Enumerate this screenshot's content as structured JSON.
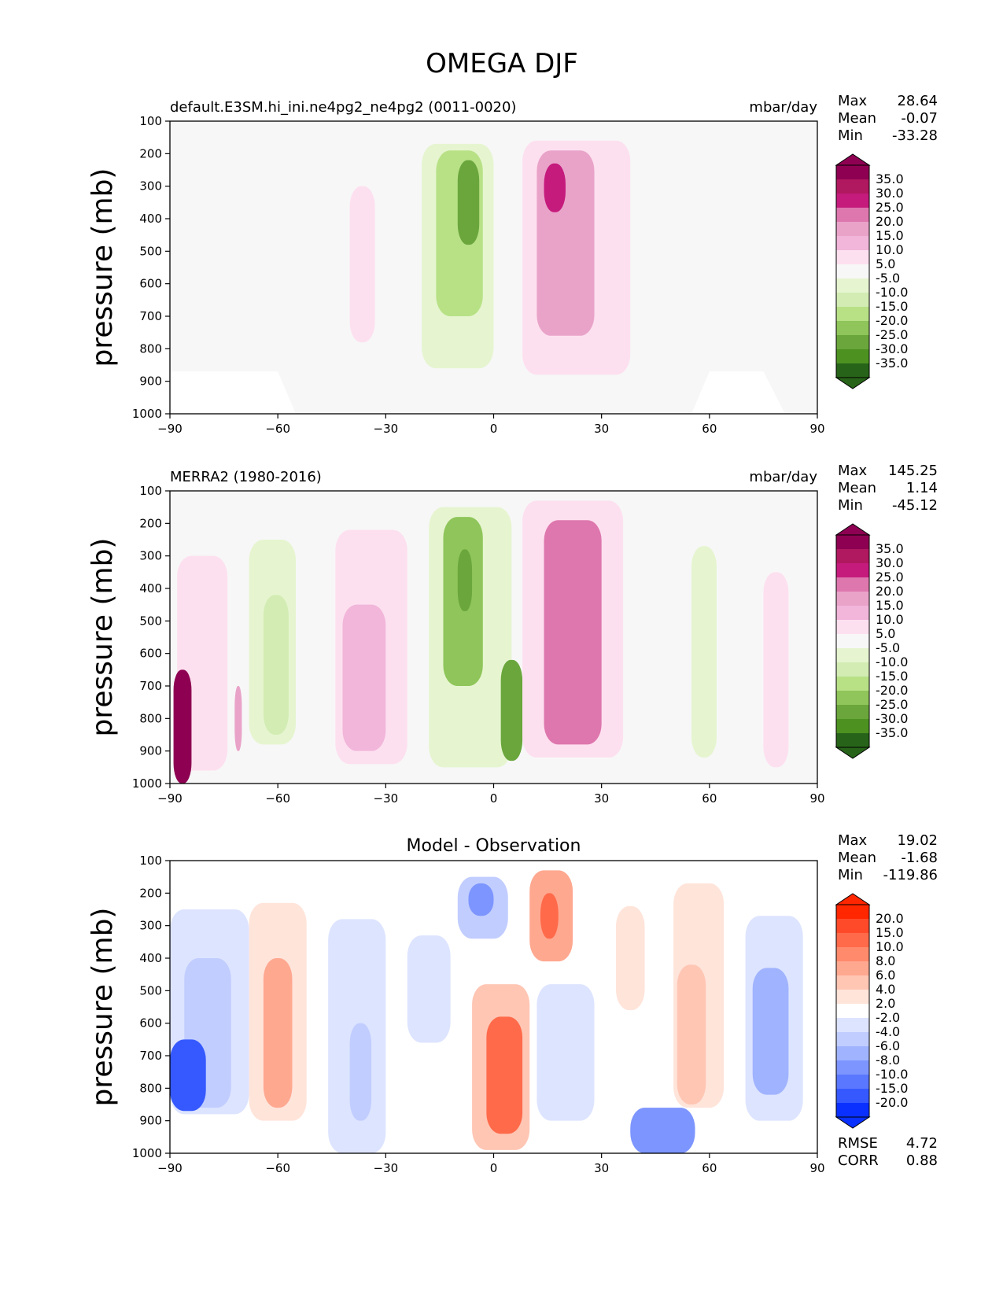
{
  "figure": {
    "title": "OMEGA DJF"
  },
  "chart_data": [
    {
      "type": "heatmap",
      "title": "default.E3SM.hi_ini.ne4pg2_ne4pg2 (0011-0020)",
      "units": "mbar/day",
      "ylabel": "pressure (mb)",
      "xlabel": "",
      "xlim": [
        -90,
        90
      ],
      "ylim": [
        1000,
        100
      ],
      "x_ticks": [
        "−90",
        "−60",
        "−30",
        "0",
        "30",
        "60",
        "90"
      ],
      "y_ticks": [
        "100",
        "200",
        "300",
        "400",
        "500",
        "600",
        "700",
        "800",
        "900",
        "1000"
      ],
      "stats": [
        {
          "label": "Max",
          "value": "28.64"
        },
        {
          "label": "Mean",
          "value": "-0.07"
        },
        {
          "label": "Min",
          "value": "-33.28"
        }
      ],
      "colorbar": {
        "labels": [
          "35.0",
          "30.0",
          "25.0",
          "20.0",
          "15.0",
          "10.0",
          "5.0",
          "-5.0",
          "-10.0",
          "-15.0",
          "-20.0",
          "-25.0",
          "-30.0",
          "-35.0"
        ],
        "colors": [
          "#8e0152",
          "#b0185f",
          "#c51b7d",
          "#de77ae",
          "#e9a3c9",
          "#f1b6da",
          "#fde0ef",
          "#f7f7f7",
          "#e6f5d0",
          "#d2ecb3",
          "#b8e186",
          "#8fc55a",
          "#6aa63c",
          "#4d9221",
          "#276419"
        ]
      },
      "features": [
        {
          "lat": [
            -40,
            -33
          ],
          "p": [
            300,
            780
          ],
          "value": 5
        },
        {
          "lat": [
            -20,
            0
          ],
          "p": [
            170,
            860
          ],
          "value": -10
        },
        {
          "lat": [
            -16,
            -3
          ],
          "p": [
            190,
            700
          ],
          "value": -20
        },
        {
          "lat": [
            -10,
            -4
          ],
          "p": [
            220,
            480
          ],
          "value": -30
        },
        {
          "lat": [
            8,
            38
          ],
          "p": [
            160,
            880
          ],
          "value": 8
        },
        {
          "lat": [
            12,
            28
          ],
          "p": [
            190,
            760
          ],
          "value": 18
        },
        {
          "lat": [
            14,
            20
          ],
          "p": [
            230,
            380
          ],
          "value": 28
        }
      ]
    },
    {
      "type": "heatmap",
      "title": "MERRA2 (1980-2016)",
      "units": "mbar/day",
      "ylabel": "pressure (mb)",
      "xlabel": "",
      "xlim": [
        -90,
        90
      ],
      "ylim": [
        1000,
        100
      ],
      "x_ticks": [
        "−90",
        "−60",
        "−30",
        "0",
        "30",
        "60",
        "90"
      ],
      "y_ticks": [
        "100",
        "200",
        "300",
        "400",
        "500",
        "600",
        "700",
        "800",
        "900",
        "1000"
      ],
      "stats": [
        {
          "label": "Max",
          "value": "145.25"
        },
        {
          "label": "Mean",
          "value": "1.14"
        },
        {
          "label": "Min",
          "value": "-45.12"
        }
      ],
      "colorbar": {
        "labels": [
          "35.0",
          "30.0",
          "25.0",
          "20.0",
          "15.0",
          "10.0",
          "5.0",
          "-5.0",
          "-10.0",
          "-15.0",
          "-20.0",
          "-25.0",
          "-30.0",
          "-35.0"
        ],
        "colors": [
          "#8e0152",
          "#b0185f",
          "#c51b7d",
          "#de77ae",
          "#e9a3c9",
          "#f1b6da",
          "#fde0ef",
          "#f7f7f7",
          "#e6f5d0",
          "#d2ecb3",
          "#b8e186",
          "#8fc55a",
          "#6aa63c",
          "#4d9221",
          "#276419"
        ]
      },
      "features": [
        {
          "lat": [
            -88,
            -74
          ],
          "p": [
            300,
            960
          ],
          "value": 5
        },
        {
          "lat": [
            -89,
            -84
          ],
          "p": [
            650,
            1000
          ],
          "value": 40
        },
        {
          "lat": [
            -72,
            -70
          ],
          "p": [
            700,
            900
          ],
          "value": 15
        },
        {
          "lat": [
            -68,
            -55
          ],
          "p": [
            250,
            880
          ],
          "value": -8
        },
        {
          "lat": [
            -64,
            -57
          ],
          "p": [
            420,
            850
          ],
          "value": -12
        },
        {
          "lat": [
            -44,
            -24
          ],
          "p": [
            220,
            940
          ],
          "value": 6
        },
        {
          "lat": [
            -42,
            -30
          ],
          "p": [
            450,
            900
          ],
          "value": 13
        },
        {
          "lat": [
            -18,
            5
          ],
          "p": [
            150,
            950
          ],
          "value": -10
        },
        {
          "lat": [
            -14,
            -3
          ],
          "p": [
            180,
            700
          ],
          "value": -22
        },
        {
          "lat": [
            -10,
            -6
          ],
          "p": [
            280,
            470
          ],
          "value": -30
        },
        {
          "lat": [
            2,
            8
          ],
          "p": [
            620,
            930
          ],
          "value": -30
        },
        {
          "lat": [
            8,
            36
          ],
          "p": [
            130,
            920
          ],
          "value": 8
        },
        {
          "lat": [
            14,
            30
          ],
          "p": [
            190,
            880
          ],
          "value": 20
        },
        {
          "lat": [
            55,
            62
          ],
          "p": [
            270,
            920
          ],
          "value": -8
        },
        {
          "lat": [
            75,
            82
          ],
          "p": [
            350,
            950
          ],
          "value": 5
        }
      ]
    },
    {
      "type": "heatmap",
      "title": "Model - Observation",
      "units": "",
      "ylabel": "pressure (mb)",
      "xlabel": "",
      "xlim": [
        -90,
        90
      ],
      "ylim": [
        1000,
        100
      ],
      "x_ticks": [
        "−90",
        "−60",
        "−30",
        "0",
        "30",
        "60",
        "90"
      ],
      "y_ticks": [
        "100",
        "200",
        "300",
        "400",
        "500",
        "600",
        "700",
        "800",
        "900",
        "1000"
      ],
      "stats": [
        {
          "label": "Max",
          "value": "19.02"
        },
        {
          "label": "Mean",
          "value": "-1.68"
        },
        {
          "label": "Min",
          "value": "-119.86"
        }
      ],
      "bottom_stats": [
        {
          "label": "RMSE",
          "value": "4.72"
        },
        {
          "label": "CORR",
          "value": "0.88"
        }
      ],
      "colorbar": {
        "labels": [
          "20.0",
          "15.0",
          "10.0",
          "8.0",
          "6.0",
          "4.0",
          "2.0",
          "-2.0",
          "-4.0",
          "-6.0",
          "-8.0",
          "-10.0",
          "-15.0",
          "-20.0"
        ],
        "colors": [
          "#ff2600",
          "#ff4a2a",
          "#ff6a4a",
          "#ff8a6c",
          "#ffa890",
          "#ffc6b4",
          "#ffe4da",
          "#ffffff",
          "#dde4ff",
          "#c1cdff",
          "#a0b3ff",
          "#7d95ff",
          "#5a77ff",
          "#3559ff",
          "#0a30ff"
        ]
      },
      "features": [
        {
          "lat": [
            -90,
            -68
          ],
          "p": [
            250,
            880
          ],
          "value": -3
        },
        {
          "lat": [
            -86,
            -73
          ],
          "p": [
            400,
            860
          ],
          "value": -6
        },
        {
          "lat": [
            -90,
            -80
          ],
          "p": [
            650,
            870
          ],
          "value": -18
        },
        {
          "lat": [
            -68,
            -52
          ],
          "p": [
            230,
            900
          ],
          "value": 3
        },
        {
          "lat": [
            -64,
            -56
          ],
          "p": [
            400,
            860
          ],
          "value": 7
        },
        {
          "lat": [
            -46,
            -30
          ],
          "p": [
            280,
            1000
          ],
          "value": -3
        },
        {
          "lat": [
            -40,
            -34
          ],
          "p": [
            600,
            900
          ],
          "value": -6
        },
        {
          "lat": [
            -24,
            -12
          ],
          "p": [
            330,
            660
          ],
          "value": -4
        },
        {
          "lat": [
            -10,
            4
          ],
          "p": [
            150,
            340
          ],
          "value": -6
        },
        {
          "lat": [
            -7,
            0
          ],
          "p": [
            170,
            270
          ],
          "value": -9
        },
        {
          "lat": [
            -6,
            10
          ],
          "p": [
            480,
            990
          ],
          "value": 5
        },
        {
          "lat": [
            -2,
            8
          ],
          "p": [
            580,
            940
          ],
          "value": 10
        },
        {
          "lat": [
            10,
            22
          ],
          "p": [
            130,
            410
          ],
          "value": 6
        },
        {
          "lat": [
            13,
            18
          ],
          "p": [
            200,
            340
          ],
          "value": 12
        },
        {
          "lat": [
            12,
            28
          ],
          "p": [
            480,
            900
          ],
          "value": -4
        },
        {
          "lat": [
            38,
            56
          ],
          "p": [
            860,
            1000
          ],
          "value": -9
        },
        {
          "lat": [
            34,
            42
          ],
          "p": [
            240,
            560
          ],
          "value": 3
        },
        {
          "lat": [
            50,
            64
          ],
          "p": [
            170,
            860
          ],
          "value": 2
        },
        {
          "lat": [
            51,
            59
          ],
          "p": [
            420,
            850
          ],
          "value": 5
        },
        {
          "lat": [
            70,
            86
          ],
          "p": [
            270,
            900
          ],
          "value": -3
        },
        {
          "lat": [
            72,
            82
          ],
          "p": [
            430,
            820
          ],
          "value": -7
        }
      ]
    }
  ]
}
